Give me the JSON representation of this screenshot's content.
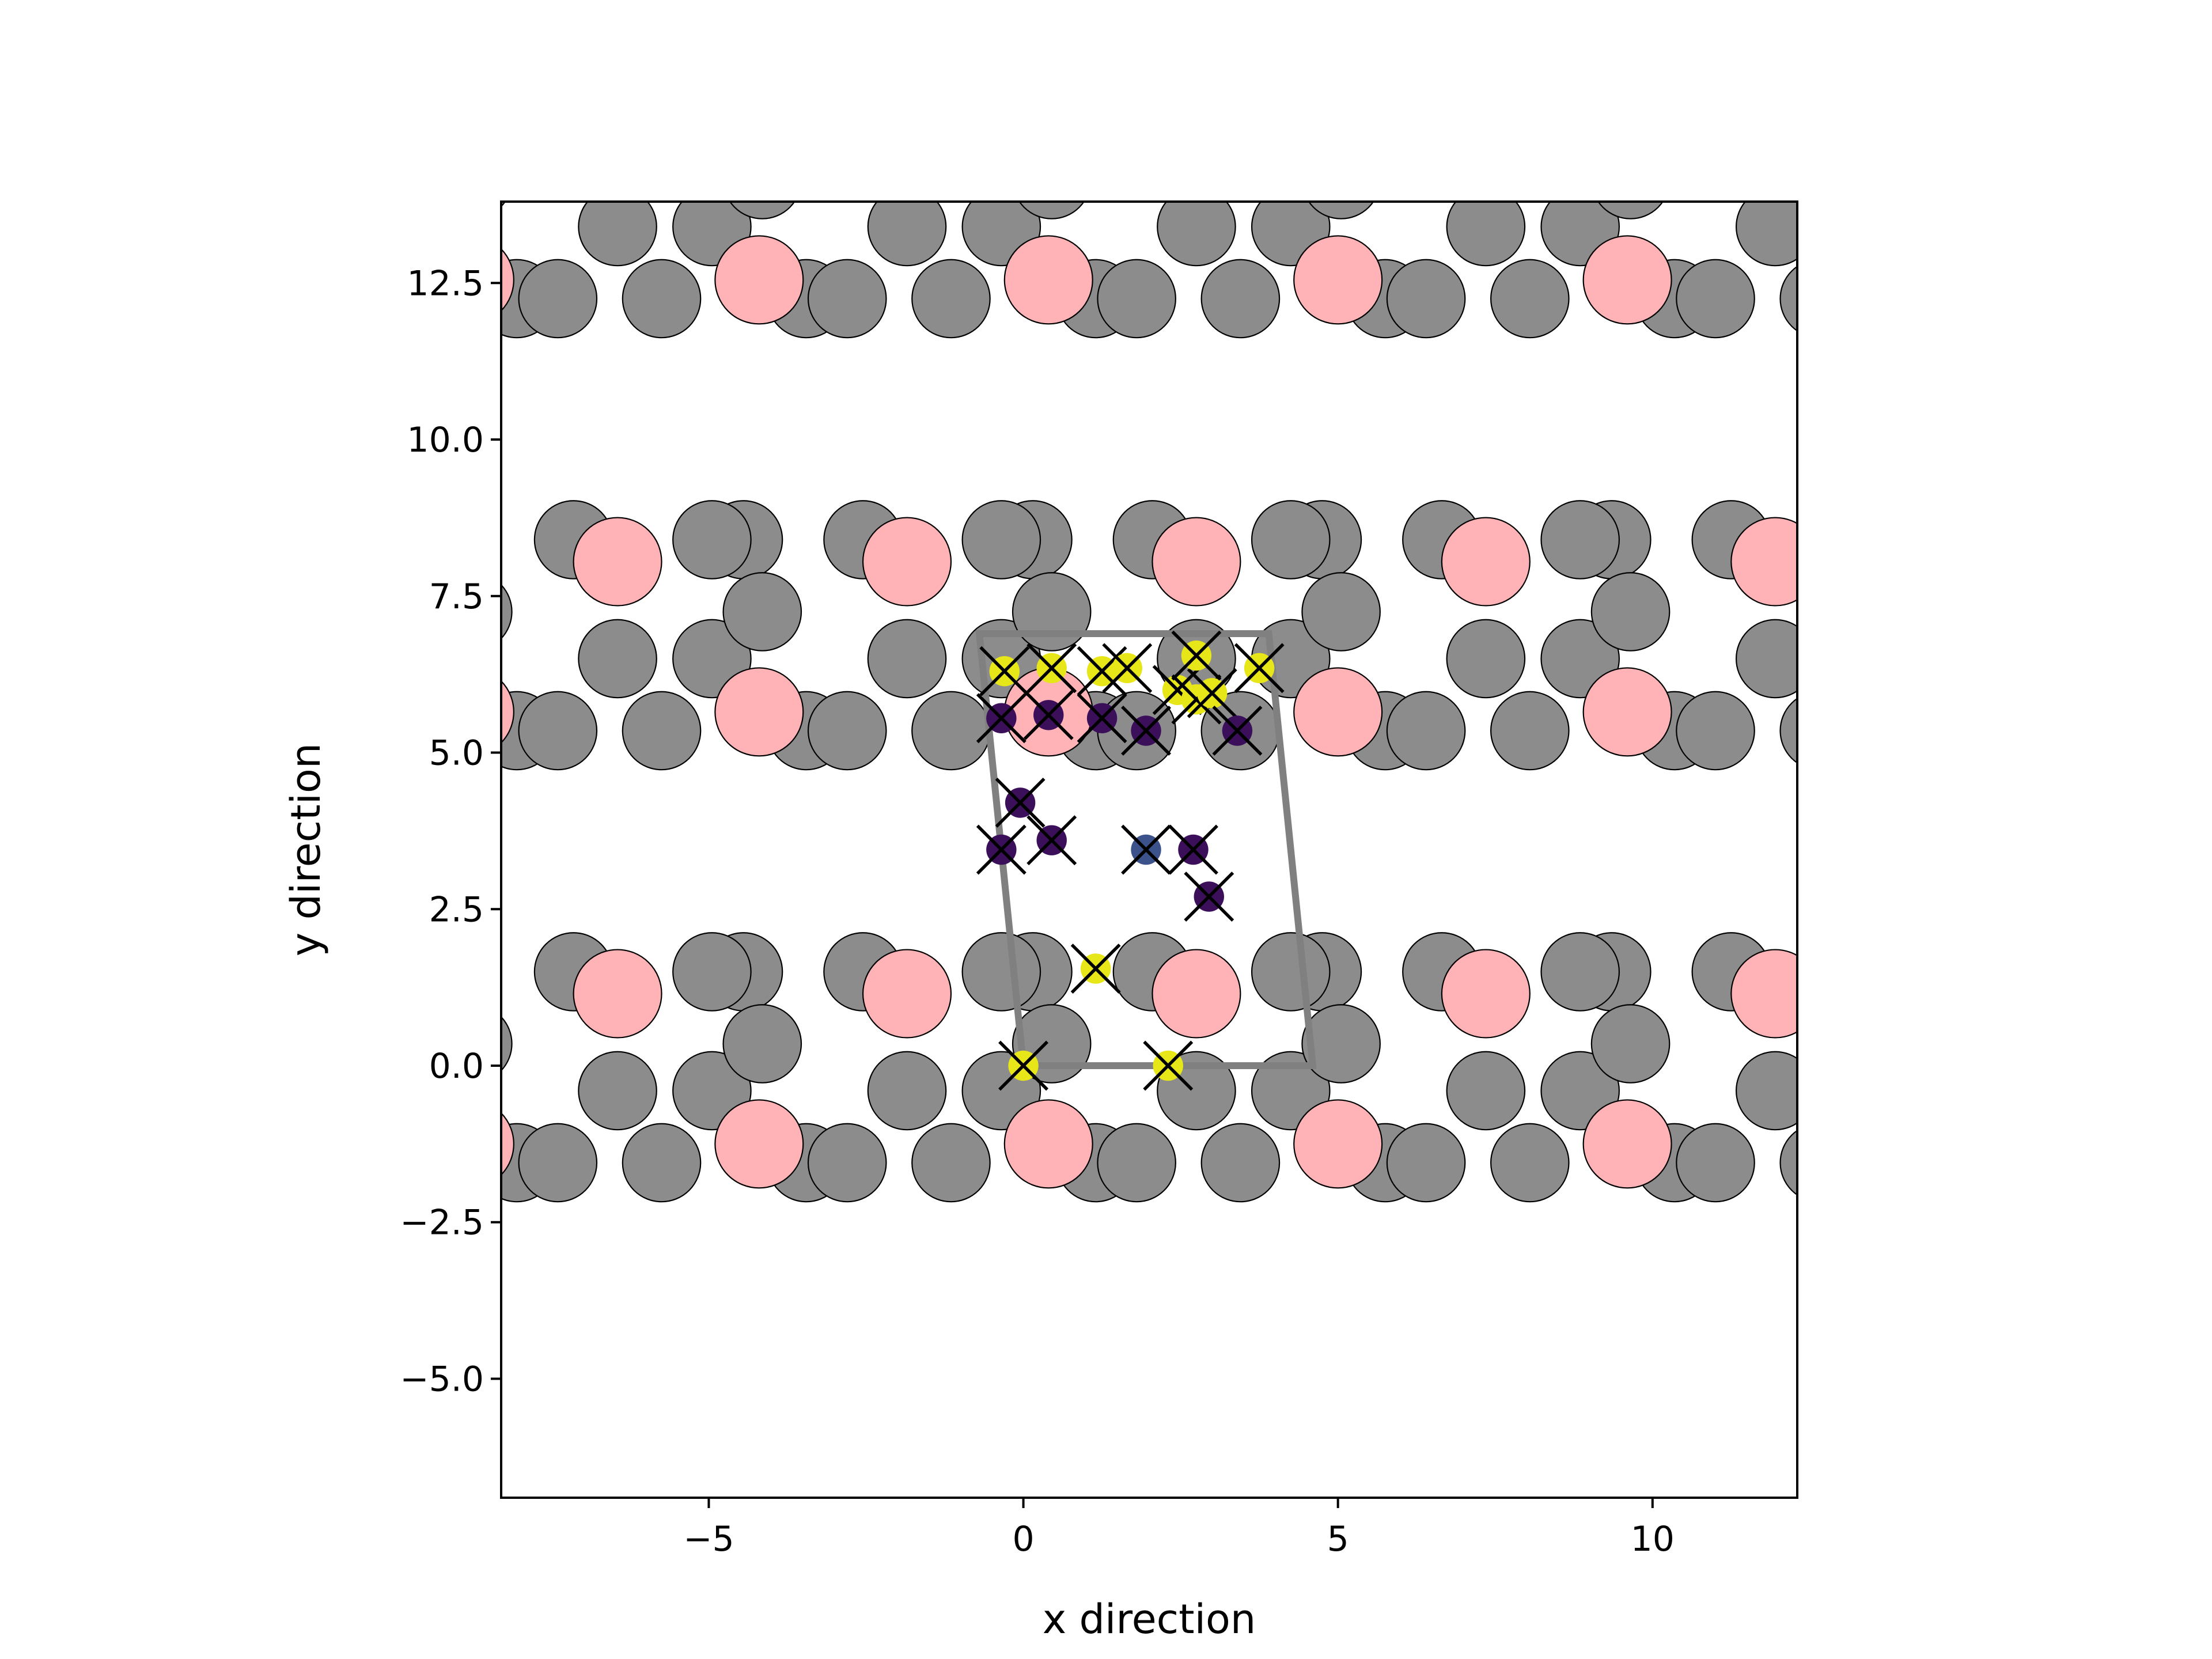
{
  "chart_data": {
    "type": "scatter",
    "title": "",
    "xlabel": "x direction",
    "ylabel": "y direction",
    "xlim": [
      -8.3,
      12.3
    ],
    "ylim": [
      -6.9,
      13.8
    ],
    "xticks": [
      -5,
      0,
      5,
      10
    ],
    "yticks": [
      -5.0,
      -2.5,
      0.0,
      2.5,
      5.0,
      7.5,
      10.0,
      12.5
    ],
    "xtick_labels": [
      "−5",
      "0",
      "5",
      "10"
    ],
    "ytick_labels": [
      "−5.0",
      "−2.5",
      "0.0",
      "2.5",
      "5.0",
      "7.5",
      "10.0",
      "12.5"
    ],
    "grid": false,
    "legend": "none",
    "colors": {
      "gray_atom": "#8c8c8c",
      "pink_atom": "#ffb3b6",
      "cell_outline": "#808080",
      "yellow_site": "#e6e619",
      "purple_site": "#3b0f5a",
      "blue_site": "#3b528b",
      "marker_x": "#000000"
    },
    "unit_cell": [
      [
        0.0,
        0.0
      ],
      [
        4.6,
        0.0
      ],
      [
        3.9,
        6.9
      ],
      [
        -0.7,
        6.9
      ]
    ],
    "layer_layout": {
      "period": 4.6,
      "layer_repeat_y": 6.9,
      "copies_x": [
        -3,
        -2,
        -1,
        0,
        1,
        2,
        3
      ],
      "copies_y": [
        -1,
        0,
        1
      ],
      "gray_atoms": [
        [
          -0.35,
          6.5
        ],
        [
          0.45,
          7.25
        ],
        [
          1.15,
          5.35
        ],
        [
          1.8,
          5.35
        ],
        [
          2.05,
          8.4
        ],
        [
          2.75,
          6.5
        ],
        [
          3.45,
          5.35
        ],
        [
          4.75,
          8.4
        ],
        [
          -0.35,
          8.4
        ]
      ],
      "pink_atoms": [
        [
          0.4,
          5.65
        ],
        [
          2.75,
          8.05
        ]
      ]
    },
    "sites": [
      {
        "x": -0.3,
        "y": 6.3,
        "color": "yellow",
        "cross": true
      },
      {
        "x": 0.45,
        "y": 6.35,
        "color": "yellow",
        "cross": true
      },
      {
        "x": 1.25,
        "y": 6.3,
        "color": "yellow",
        "cross": true
      },
      {
        "x": 1.65,
        "y": 6.35,
        "color": "yellow",
        "cross": true
      },
      {
        "x": 2.45,
        "y": 6.0,
        "color": "yellow",
        "cross": true
      },
      {
        "x": 2.75,
        "y": 5.85,
        "color": "yellow",
        "cross": true
      },
      {
        "x": 3.0,
        "y": 5.95,
        "color": "yellow",
        "cross": true
      },
      {
        "x": 3.75,
        "y": 6.35,
        "color": "yellow",
        "cross": true
      },
      {
        "x": 2.75,
        "y": 6.55,
        "color": "yellow",
        "cross": true
      },
      {
        "x": -0.35,
        "y": 5.55,
        "color": "purple",
        "cross": true
      },
      {
        "x": 0.4,
        "y": 5.6,
        "color": "purple",
        "cross": true
      },
      {
        "x": 1.25,
        "y": 5.55,
        "color": "purple",
        "cross": true
      },
      {
        "x": 1.95,
        "y": 5.35,
        "color": "purple",
        "cross": true
      },
      {
        "x": 3.4,
        "y": 5.35,
        "color": "purple",
        "cross": true
      },
      {
        "x": -0.05,
        "y": 4.2,
        "color": "purple",
        "cross": true
      },
      {
        "x": -0.35,
        "y": 3.45,
        "color": "purple",
        "cross": true
      },
      {
        "x": 0.45,
        "y": 3.6,
        "color": "purple",
        "cross": true
      },
      {
        "x": 1.95,
        "y": 3.45,
        "color": "blue",
        "cross": true
      },
      {
        "x": 2.7,
        "y": 3.45,
        "color": "purple",
        "cross": true
      },
      {
        "x": 2.95,
        "y": 2.7,
        "color": "purple",
        "cross": true
      },
      {
        "x": 1.15,
        "y": 1.55,
        "color": "yellow",
        "cross": true
      },
      {
        "x": 0.0,
        "y": 0.0,
        "color": "yellow",
        "cross": true
      },
      {
        "x": 2.3,
        "y": 0.0,
        "color": "yellow",
        "cross": true
      }
    ]
  }
}
